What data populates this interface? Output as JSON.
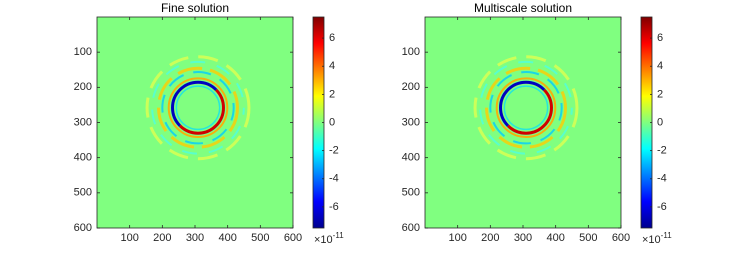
{
  "chart_data": [
    {
      "type": "heatmap",
      "title": "Fine solution",
      "xlim": [
        0,
        600
      ],
      "ylim": [
        0,
        600
      ],
      "xticks": [
        100,
        200,
        300,
        400,
        500,
        600
      ],
      "yticks": [
        100,
        200,
        300,
        400,
        500,
        600
      ],
      "y_reversed": true,
      "colormap": "jet",
      "colorbar": {
        "clim": [
          -7.5,
          7.5
        ],
        "ticks": [
          -6,
          -4,
          -2,
          0,
          2,
          4,
          6
        ],
        "multiplier": {
          "base": "×10",
          "exponent": "-11"
        }
      }
    },
    {
      "type": "heatmap",
      "title": "Multiscale solution",
      "xlim": [
        0,
        600
      ],
      "ylim": [
        0,
        600
      ],
      "xticks": [
        100,
        200,
        300,
        400,
        500,
        600
      ],
      "yticks": [
        100,
        200,
        300,
        400,
        500,
        600
      ],
      "y_reversed": true,
      "colormap": "jet",
      "colorbar": {
        "clim": [
          -7.5,
          7.5
        ],
        "ticks": [
          -6,
          -4,
          -2,
          0,
          2,
          4,
          6
        ],
        "multiplier": {
          "base": "×10",
          "exponent": "-11"
        }
      }
    }
  ]
}
